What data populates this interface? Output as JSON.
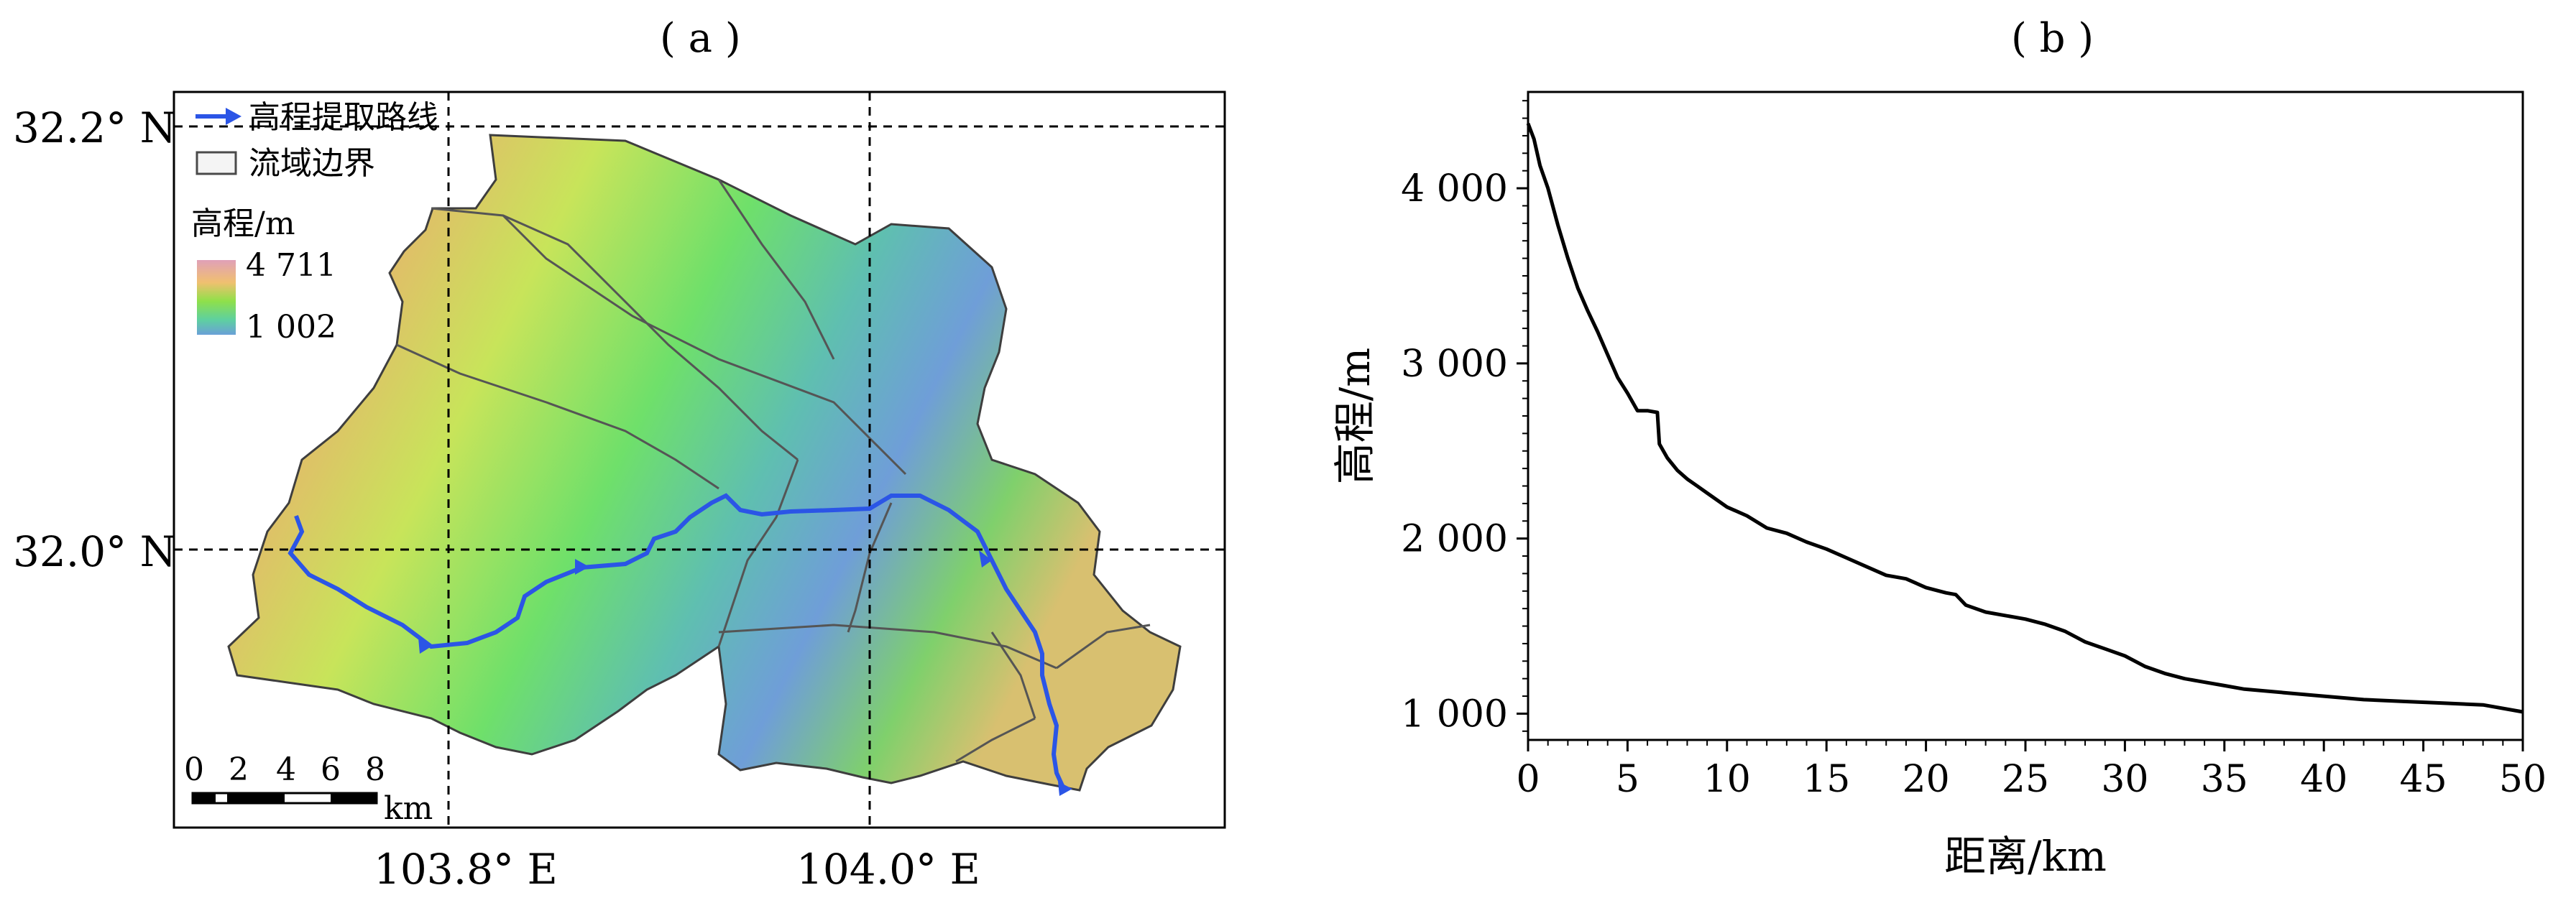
{
  "panel_a": {
    "label": "( a )",
    "legend": {
      "route_label": "高程提取路线",
      "boundary_label": "流域边界",
      "elev_title": "高程/m",
      "elev_max": "4 711",
      "elev_min": "1 002"
    },
    "lat_labels": [
      "32.2° N",
      "32.0° N"
    ],
    "lon_labels": [
      "103.8° E",
      "104.0° E"
    ],
    "scalebar": {
      "ticks": [
        "0",
        "2",
        "4",
        "6",
        "8"
      ],
      "unit": "km"
    },
    "colors": {
      "route": "#2b55e6",
      "boundary": "#4a4a4a",
      "elev_high": "#d9a2b0",
      "elev_mid": "#7fe24a",
      "elev_low": "#6aa3d6"
    }
  },
  "panel_b": {
    "label": "( b )"
  },
  "chart_data": {
    "type": "line",
    "title": "",
    "xlabel": "距离/km",
    "ylabel": "高程/m",
    "xlim": [
      0,
      50
    ],
    "ylim": [
      850,
      4550
    ],
    "xticks": [
      0,
      5,
      10,
      15,
      20,
      25,
      30,
      35,
      40,
      45,
      50
    ],
    "xtick_labels": [
      "0",
      "5",
      "10",
      "15",
      "20",
      "25",
      "30",
      "35",
      "40",
      "45",
      "50"
    ],
    "yticks": [
      1000,
      2000,
      3000,
      4000
    ],
    "ytick_labels": [
      "1 000",
      "2 000",
      "3 000",
      "4 000"
    ],
    "grid": false,
    "series": [
      {
        "x": [
          0,
          0.3,
          0.6,
          1,
          1.5,
          2,
          2.5,
          3,
          3.5,
          4,
          4.5,
          5,
          5.5,
          6,
          6.5,
          6.6,
          7,
          7.5,
          8,
          8.5,
          9,
          10,
          11,
          12,
          13,
          14,
          15,
          16,
          17,
          18,
          19,
          20,
          21,
          21.5,
          22,
          23,
          24,
          25,
          26,
          27,
          28,
          29,
          30,
          31,
          32,
          33,
          34,
          35,
          36,
          38,
          40,
          42,
          44,
          46,
          48,
          50
        ],
        "y": [
          4370,
          4280,
          4130,
          4000,
          3790,
          3600,
          3430,
          3300,
          3180,
          3050,
          2920,
          2830,
          2730,
          2730,
          2720,
          2540,
          2460,
          2390,
          2340,
          2300,
          2260,
          2180,
          2130,
          2060,
          2030,
          1980,
          1940,
          1890,
          1840,
          1790,
          1770,
          1720,
          1690,
          1680,
          1620,
          1580,
          1560,
          1540,
          1510,
          1470,
          1410,
          1370,
          1330,
          1270,
          1230,
          1200,
          1180,
          1160,
          1140,
          1120,
          1100,
          1080,
          1070,
          1060,
          1050,
          1010
        ]
      }
    ]
  }
}
